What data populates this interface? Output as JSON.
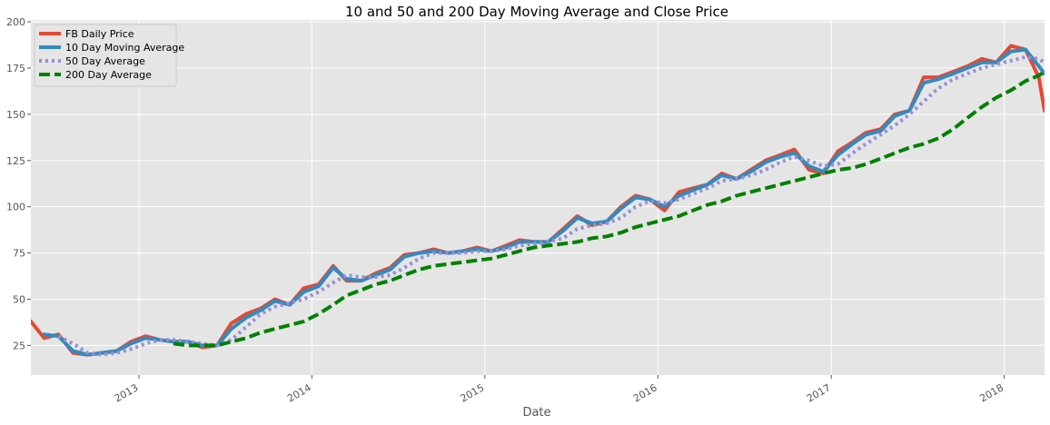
{
  "chart_data": {
    "type": "line",
    "title": "10 and 50 and 200 Day Moving Average and Close Price",
    "xlabel": "Date",
    "ylabel": "",
    "xlim": [
      "2012-05-18",
      "2018-03-27"
    ],
    "ylim": [
      9,
      201
    ],
    "x_ticks": [
      "2013",
      "2014",
      "2015",
      "2016",
      "2017",
      "2018"
    ],
    "y_ticks": [
      25,
      50,
      75,
      100,
      125,
      150,
      175,
      200
    ],
    "grid": true,
    "legend": "top-left",
    "x": [
      "2012-05-18",
      "2012-06-15",
      "2012-07-15",
      "2012-08-15",
      "2012-09-15",
      "2012-10-15",
      "2012-11-15",
      "2012-12-15",
      "2013-01-15",
      "2013-02-15",
      "2013-03-15",
      "2013-04-15",
      "2013-05-15",
      "2013-06-15",
      "2013-07-15",
      "2013-08-15",
      "2013-09-15",
      "2013-10-15",
      "2013-11-15",
      "2013-12-15",
      "2014-01-15",
      "2014-02-15",
      "2014-03-15",
      "2014-04-15",
      "2014-05-15",
      "2014-06-15",
      "2014-07-15",
      "2014-08-15",
      "2014-09-15",
      "2014-10-15",
      "2014-11-15",
      "2014-12-15",
      "2015-01-15",
      "2015-02-15",
      "2015-03-15",
      "2015-04-15",
      "2015-05-15",
      "2015-06-15",
      "2015-07-15",
      "2015-08-15",
      "2015-09-15",
      "2015-10-15",
      "2015-11-15",
      "2015-12-15",
      "2016-01-15",
      "2016-02-15",
      "2016-03-15",
      "2016-04-15",
      "2016-05-15",
      "2016-06-15",
      "2016-07-15",
      "2016-08-15",
      "2016-09-15",
      "2016-10-15",
      "2016-11-15",
      "2016-12-15",
      "2017-01-15",
      "2017-02-15",
      "2017-03-15",
      "2017-04-15",
      "2017-05-15",
      "2017-06-15",
      "2017-07-15",
      "2017-08-15",
      "2017-09-15",
      "2017-10-15",
      "2017-11-15",
      "2017-12-15",
      "2018-01-15",
      "2018-02-15",
      "2018-03-15",
      "2018-03-27"
    ],
    "series": [
      {
        "name": "FB Daily Price",
        "color": "#E24A33",
        "style": "solid",
        "values": [
          38,
          29,
          31,
          21,
          20,
          21,
          22,
          27,
          30,
          28,
          27,
          27,
          24,
          25,
          37,
          42,
          45,
          50,
          47,
          56,
          58,
          68,
          60,
          60,
          64,
          67,
          74,
          75,
          77,
          75,
          76,
          78,
          76,
          79,
          82,
          81,
          81,
          88,
          95,
          90,
          92,
          100,
          106,
          104,
          98,
          108,
          110,
          112,
          118,
          115,
          120,
          125,
          128,
          131,
          120,
          118,
          130,
          135,
          140,
          142,
          150,
          152,
          170,
          170,
          173,
          176,
          180,
          178,
          187,
          185,
          170,
          152
        ],
        "ignore": true
      },
      {
        "name": "10 Day Moving Average",
        "color": "#348ABD",
        "style": "solid",
        "values": [
          null,
          31,
          30,
          22,
          20,
          21,
          22,
          26,
          29,
          28,
          27,
          27,
          25,
          25,
          34,
          40,
          44,
          49,
          47,
          54,
          57,
          67,
          61,
          60,
          63,
          66,
          73,
          75,
          76,
          75,
          76,
          77,
          76,
          78,
          81,
          81,
          81,
          87,
          94,
          91,
          92,
          99,
          105,
          104,
          100,
          106,
          109,
          112,
          117,
          115,
          119,
          124,
          127,
          129,
          122,
          119,
          128,
          134,
          139,
          141,
          149,
          152,
          167,
          169,
          172,
          175,
          178,
          178,
          184,
          185,
          176,
          172
        ]
      },
      {
        "name": "50 Day Average",
        "color": "#988ED5",
        "style": "dotted",
        "values": [
          null,
          null,
          30,
          26,
          21,
          20,
          21,
          23,
          26,
          28,
          28,
          27,
          26,
          25,
          28,
          35,
          42,
          46,
          48,
          50,
          54,
          59,
          63,
          62,
          62,
          63,
          67,
          72,
          75,
          75,
          75,
          76,
          76,
          77,
          79,
          80,
          81,
          83,
          88,
          90,
          91,
          94,
          100,
          103,
          102,
          104,
          107,
          110,
          114,
          115,
          117,
          120,
          124,
          127,
          125,
          122,
          123,
          129,
          134,
          139,
          144,
          150,
          157,
          164,
          169,
          172,
          175,
          177,
          179,
          181,
          180,
          178
        ]
      },
      {
        "name": "200 Day Average",
        "color": "#008000",
        "style": "dashed",
        "values": [
          null,
          null,
          null,
          null,
          null,
          null,
          null,
          null,
          null,
          null,
          26,
          25,
          25,
          25,
          27,
          29,
          32,
          34,
          36,
          38,
          42,
          47,
          52,
          55,
          58,
          60,
          63,
          66,
          68,
          69,
          70,
          71,
          72,
          74,
          76,
          78,
          79,
          80,
          81,
          83,
          84,
          86,
          89,
          91,
          93,
          95,
          98,
          101,
          103,
          106,
          108,
          110,
          112,
          114,
          116,
          118,
          120,
          121,
          123,
          126,
          129,
          132,
          134,
          137,
          142,
          148,
          154,
          159,
          163,
          168,
          171,
          173
        ]
      }
    ]
  }
}
